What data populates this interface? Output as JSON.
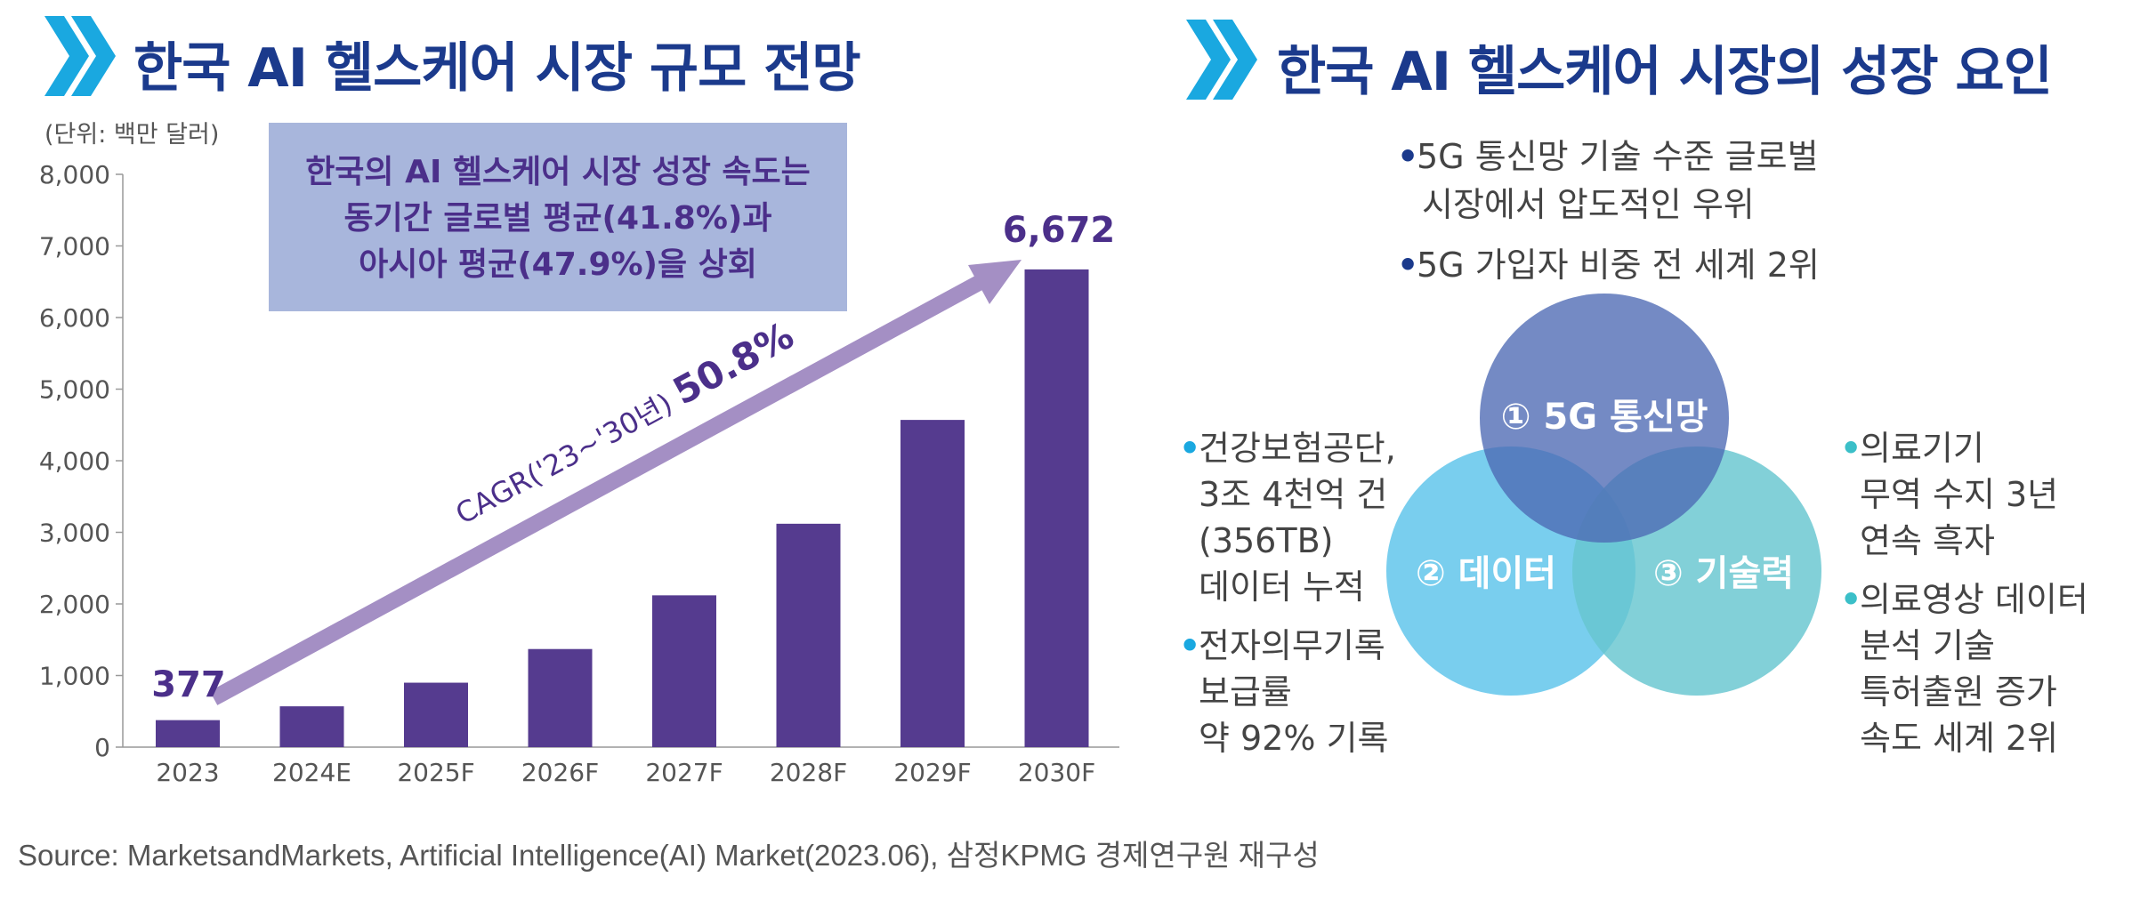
{
  "left": {
    "title": "한국 AI 헬스케어 시장 규모 전망",
    "unit": "(단위: 백만 달러)",
    "callout": [
      "한국의 AI 헬스케어 시장 성장 속도는",
      "동기간 글로벌 평균(41.8%)과",
      "아시아 평균(47.9%)을 상회"
    ],
    "cagr_label": "CAGR('23~'30년)",
    "cagr_value": "50.8%",
    "first_value_label": "377",
    "last_value_label": "6,672"
  },
  "right": {
    "title": "한국 AI 헬스케어 시장의 성장 요인",
    "top_bullets": [
      "5G 통신망 기술 수준 글로벌",
      "시장에서 압도적인 우위",
      "5G 가입자 비중 전 세계 2위"
    ],
    "circles": {
      "top": "① 5G 통신망",
      "left": "② 데이터",
      "right": "③ 기술력"
    },
    "left_bullets": [
      {
        "lines": [
          "건강보험공단,",
          "3조 4천억 건",
          "(356TB)",
          "데이터 누적"
        ]
      },
      {
        "lines": [
          "전자의무기록",
          "보급률",
          "약 92% 기록"
        ]
      }
    ],
    "right_bullets": [
      {
        "lines": [
          "의료기기",
          "무역 수지 3년",
          "연속 흑자"
        ]
      },
      {
        "lines": [
          "의료영상 데이터",
          "분석 기술",
          "특허출원 증가",
          "속도 세계 2위"
        ]
      }
    ]
  },
  "source": "Source: MarketsandMarkets, Artificial Intelligence(AI) Market(2023.06), 삼정KPMG 경제연구원 재구성",
  "colors": {
    "title": "#1b3a8c",
    "chevron": "#1aa8e0",
    "bar": "#553b8f",
    "arrow": "#a48fc4",
    "callout_bg": "#a8b6dc",
    "callout_text": "#4b2f8a",
    "circle_top": "#5a73b8",
    "circle_left": "#5bc3ea",
    "circle_right": "#66c6cf"
  },
  "chart_data": {
    "type": "bar",
    "title": "한국 AI 헬스케어 시장 규모 전망",
    "ylabel": "(단위: 백만 달러)",
    "xlabel": "",
    "categories": [
      "2023",
      "2024E",
      "2025F",
      "2026F",
      "2027F",
      "2028F",
      "2029F",
      "2030F"
    ],
    "values": [
      377,
      570,
      900,
      1370,
      2120,
      3120,
      4570,
      6672
    ],
    "ylim": [
      0,
      8000
    ],
    "yticks": [
      0,
      1000,
      2000,
      3000,
      4000,
      5000,
      6000,
      7000,
      8000
    ],
    "ytick_labels": [
      "0",
      "1,000",
      "2,000",
      "3,000",
      "4,000",
      "5,000",
      "6,000",
      "7,000",
      "8,000"
    ],
    "grid": false,
    "annotations": [
      "377",
      "6,672",
      "CAGR('23~'30년) 50.8%"
    ]
  }
}
